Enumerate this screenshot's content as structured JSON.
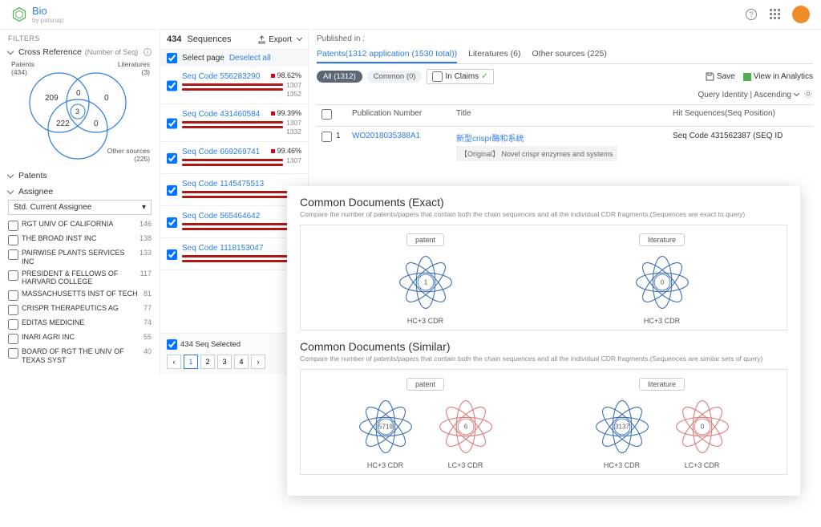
{
  "brand": {
    "name": "Bio",
    "sub": "by patsnap"
  },
  "filters": {
    "heading": "FILTERS",
    "cross_ref": {
      "label": "Cross Reference",
      "sublabel": "(Number of Seq)"
    },
    "venn": {
      "patents_label": "Patents",
      "patents_count": "(434)",
      "lit_label": "Literatures",
      "lit_count": "(3)",
      "other_label": "Other sources",
      "other_count": "(225)",
      "v209": "209",
      "v0a": "0",
      "v0b": "0",
      "v3": "3",
      "v222": "222",
      "v0c": "0"
    },
    "patents_label": "Patents",
    "assignee_label": "Assignee",
    "assignee_select": "Std. Current Assignee",
    "assignees": [
      {
        "name": "RGT UNIV OF CALIFORNIA",
        "count": "146"
      },
      {
        "name": "THE BROAD INST INC",
        "count": "138"
      },
      {
        "name": "PAIRWISE PLANTS SERVICES INC",
        "count": "133"
      },
      {
        "name": "PRESIDENT & FELLOWS OF HARVARD COLLEGE",
        "count": "117"
      },
      {
        "name": "MASSACHUSETTS INST OF TECH",
        "count": "81"
      },
      {
        "name": "CRISPR THERAPEUTICS AG",
        "count": "77"
      },
      {
        "name": "EDITAS MEDICINE",
        "count": "74"
      },
      {
        "name": "INARI AGRI INC",
        "count": "55"
      },
      {
        "name": "BOARD OF RGT THE UNIV OF TEXAS SYST",
        "count": "40"
      }
    ]
  },
  "seq": {
    "count": "434",
    "count_label": "Sequences",
    "export": "Export",
    "select_page": "Select page",
    "deselect": "Deselect all",
    "items": [
      {
        "code": "Seq Code 556283290",
        "pct": "98.62%",
        "n1": "1307",
        "n2": "1352"
      },
      {
        "code": "Seq Code 431460584",
        "pct": "99.39%",
        "n1": "1307",
        "n2": "1332"
      },
      {
        "code": "Seq Code 669269741",
        "pct": "99.46%",
        "n1": "1307",
        "n2": ""
      },
      {
        "code": "Seq Code 1145475513",
        "pct": "",
        "n1": "",
        "n2": ""
      },
      {
        "code": "Seq Code 565464642",
        "pct": "",
        "n1": "",
        "n2": ""
      },
      {
        "code": "Seq Code 1118153047",
        "pct": "",
        "n1": "",
        "n2": ""
      }
    ],
    "selected": "434 Seq Selected",
    "pages": [
      "1",
      "2",
      "3",
      "4"
    ]
  },
  "content": {
    "published_in": "Published in :",
    "tabs": [
      {
        "label": "Patents(1312 application (1530 total))",
        "active": true
      },
      {
        "label": "Literatures (6)"
      },
      {
        "label": "Other sources (225)"
      }
    ],
    "pills": {
      "all": "All (1312)",
      "common": "Common (0)",
      "in_claims": "In Claims"
    },
    "save": "Save",
    "analytics": "View in Analytics",
    "sort": "Query Identity | Ascending",
    "columns": {
      "pub": "Publication Number",
      "title": "Title",
      "hit": "Hit Sequences(Seq Position)"
    },
    "row": {
      "idx": "1",
      "pub": "WO2018035388A1",
      "title_main": "新型crispr酶和系统",
      "title_sub": "【Original】 Novel crispr enzymes and systems",
      "hit": "Seq Code 431562387 (SEQ ID"
    }
  },
  "overlay": {
    "h_exact": "Common Documents (Exact)",
    "sub_exact": "Compare the number of patents/papers that contain both the chain sequences and all the individual CDR fragments.(Sequences are exact to query)",
    "h_similar": "Common Documents (Similar)",
    "sub_similar": "Compare the number of patents/papers that contain both the chain sequences and all the individual CDR fragments.(Sequences are similar sets of query)",
    "patent_pill": "patent",
    "lit_pill": "literature",
    "label_hc": "HC+3 CDR",
    "label_lc": "LC+3 CDR",
    "exact": {
      "patent": "1",
      "lit": "0"
    },
    "similar": {
      "p_hc": "5719",
      "p_lc": "6",
      "l_hc": "3137",
      "l_lc": "0"
    },
    "colors": {
      "blue": "#3b6fb6",
      "red": "#e07a7a"
    }
  }
}
